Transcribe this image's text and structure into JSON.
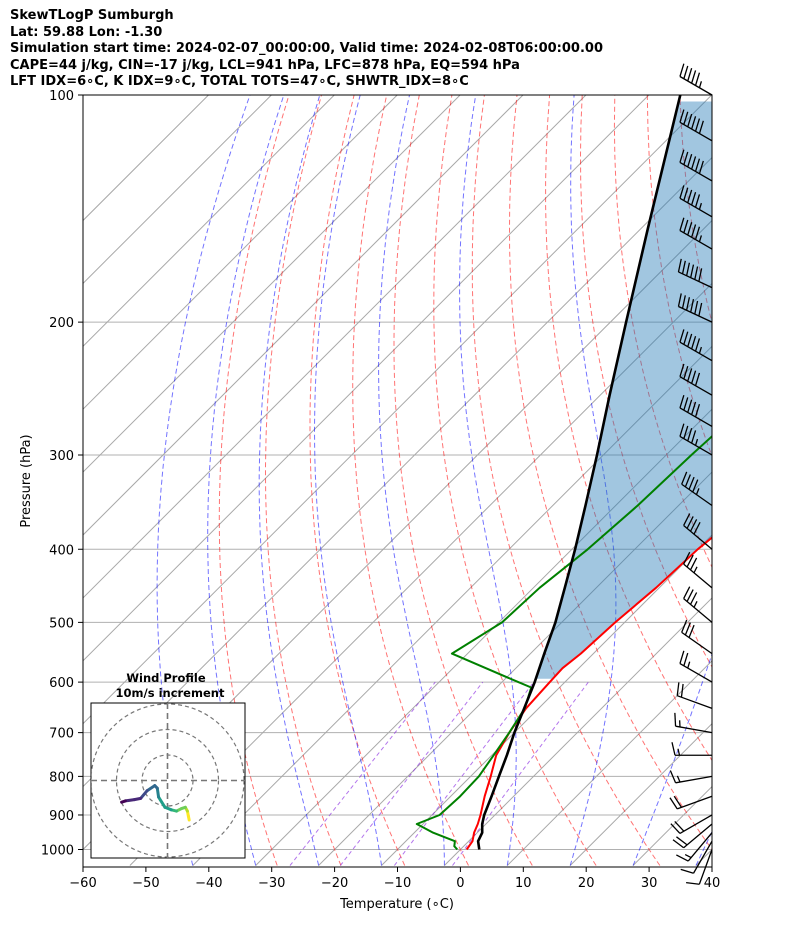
{
  "header": {
    "line1": "SkewTLogP Sumburgh",
    "line2": "Lat: 59.88   Lon: -1.30",
    "line3": "Simulation start time: 2024-02-07_00:00:00, Valid time: 2024-02-08T06:00:00.00",
    "line4": "CAPE=44 j/kg, CIN=-17 j/kg, LCL=941 hPa, LFC=878 hPa, EQ=594 hPa",
    "line5": "LFT IDX=6∘C, K IDX=9∘C, TOTAL TOTS=47∘C, SHWTR_IDX=8∘C"
  },
  "chart_data": {
    "type": "line",
    "subtype": "skew-t log-p",
    "xlabel": "Temperature (∘C)",
    "ylabel": "Pressure (hPa)",
    "xlim": [
      -60,
      40
    ],
    "ylim": [
      1050,
      100
    ],
    "y_scale": "log",
    "x_ticks": [
      "−60",
      "−50",
      "−40",
      "−30",
      "−20",
      "−10",
      "0",
      "10",
      "20",
      "30",
      "40"
    ],
    "y_ticks": [
      100,
      200,
      300,
      400,
      500,
      600,
      700,
      800,
      900,
      1000
    ],
    "grid": true,
    "colors": {
      "temperature": "#ff0000",
      "dewpoint": "#008000",
      "parcel": "#000000",
      "cape_fill": "#1f77b4",
      "dry_adiabats": "#ff0000",
      "moist_adiabats": "#0000ff",
      "mixing_ratio": "#8a2be2",
      "isotherms": "#999999"
    },
    "temperature": {
      "pressure": [
        1000,
        975,
        950,
        925,
        900,
        850,
        800,
        750,
        700,
        650,
        600,
        575,
        550,
        500,
        450,
        400,
        350,
        300,
        270,
        250,
        230,
        210,
        190,
        180,
        170,
        160,
        150,
        140,
        130,
        120,
        110,
        100
      ],
      "values": [
        1.0,
        0.6,
        -0.5,
        -1.3,
        -2.3,
        -4.6,
        -6.8,
        -9.3,
        -10.8,
        -12.0,
        -12.4,
        -12.6,
        -12.0,
        -11.5,
        -10.5,
        -10.0,
        -8.5,
        -9.0,
        -10.0,
        -11.0,
        -12.5,
        -13.5,
        -15.5,
        -17.0,
        -20.0,
        -23.0,
        -25.0,
        -28.0,
        -30.0,
        -32.0,
        -34.0,
        -37.0
      ]
    },
    "dewpoint": {
      "pressure": [
        1000,
        990,
        975,
        950,
        925,
        900,
        850,
        800,
        750,
        700,
        650,
        610,
        600,
        550,
        500,
        450,
        400,
        350,
        300,
        250,
        220,
        200,
        180,
        160,
        140,
        120,
        100
      ],
      "values": [
        -0.5,
        -1.5,
        -2.2,
        -7.0,
        -11.0,
        -8.8,
        -8.5,
        -8.7,
        -9.7,
        -10.8,
        -12.2,
        -14.5,
        -17.4,
        -32.5,
        -29.5,
        -29.0,
        -27.5,
        -26.5,
        -26.0,
        -25.0,
        -24.0,
        -24.0,
        -25.0,
        -29.0,
        -33.0,
        -40.0,
        -48.0
      ]
    },
    "parcel": {
      "pressure": [
        1000,
        975,
        950,
        941,
        925,
        900,
        850,
        800,
        750,
        700,
        650,
        600,
        550,
        500,
        450,
        400,
        350,
        300,
        250,
        200,
        150,
        100
      ],
      "values": [
        3.0,
        1.5,
        0.8,
        0.3,
        -0.6,
        -1.7,
        -3.5,
        -5.5,
        -7.6,
        -10.0,
        -12.3,
        -14.8,
        -17.8,
        -21.0,
        -25.0,
        -29.5,
        -34.8,
        -41.0,
        -48.5,
        -57.5,
        -69.0,
        -85.0
      ]
    },
    "wind_barbs": {
      "pressure": [
        1000,
        975,
        950,
        925,
        900,
        850,
        800,
        750,
        700,
        650,
        600,
        550,
        500,
        450,
        400,
        350,
        300,
        275,
        250,
        225,
        200,
        180,
        160,
        145,
        130,
        115,
        100
      ],
      "speed_kt": [
        10,
        10,
        15,
        20,
        20,
        20,
        15,
        15,
        15,
        20,
        25,
        30,
        35,
        35,
        40,
        45,
        45,
        50,
        50,
        55,
        60,
        60,
        55,
        55,
        60,
        60,
        55
      ],
      "direction_deg": [
        200,
        210,
        220,
        230,
        240,
        250,
        260,
        270,
        280,
        290,
        300,
        305,
        310,
        310,
        310,
        305,
        300,
        300,
        300,
        300,
        295,
        295,
        300,
        300,
        300,
        300,
        300
      ]
    },
    "hodograph": {
      "title": "Wind Profile",
      "subtitle": "10m/s increment",
      "rings": [
        10,
        20,
        30
      ],
      "u": [
        8.5,
        8.2,
        7.8,
        7.0,
        5.5,
        3.5,
        1.5,
        -1.0,
        -3.5,
        -4.0,
        -5.0,
        -8.0,
        -10.5,
        -13.0,
        -16.5,
        -18.0
      ],
      "v": [
        -15.5,
        -14.0,
        -12.0,
        -10.5,
        -11.0,
        -12.0,
        -11.5,
        -10.5,
        -6.5,
        -3.0,
        -2.0,
        -4.0,
        -7.0,
        -7.5,
        -8.0,
        -8.5
      ]
    }
  }
}
